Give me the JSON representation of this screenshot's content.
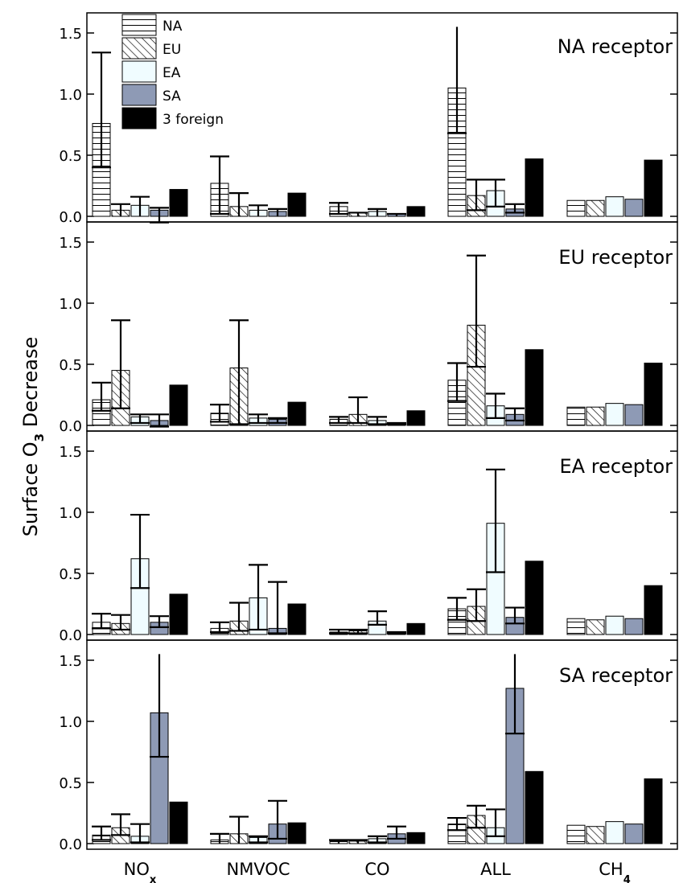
{
  "chart_data": {
    "type": "bar",
    "y_axis_label": {
      "main": "Surface O",
      "sub": "3",
      "tail": " Decrease"
    },
    "categories": [
      {
        "name": "NO",
        "sub": "x"
      },
      {
        "name": "NMVOC",
        "sub": ""
      },
      {
        "name": "CO",
        "sub": ""
      },
      {
        "name": "ALL",
        "sub": ""
      },
      {
        "name": "CH",
        "sub": "4"
      }
    ],
    "series": [
      {
        "name": "NA",
        "pattern": "horizontal-lines"
      },
      {
        "name": "EU",
        "pattern": "diagonal-hatch"
      },
      {
        "name": "EA",
        "color": "#f0fcff"
      },
      {
        "name": "SA",
        "color": "#8e9ab5"
      },
      {
        "name": "3 foreign",
        "color": "#000000"
      }
    ],
    "ylim": [
      0,
      1.55
    ],
    "yticks": [
      0.0,
      0.5,
      1.0,
      1.5
    ],
    "ytick_labels": [
      "0.0",
      "0.5",
      "1.0",
      "1.5"
    ],
    "legend_location": "top-left of first panel",
    "panels": [
      {
        "receptor_label": "NA receptor",
        "values": [
          [
            0.76,
            0.05,
            0.09,
            0.05,
            0.22
          ],
          [
            0.27,
            0.08,
            0.05,
            0.04,
            0.19
          ],
          [
            0.08,
            0.03,
            0.04,
            0.02,
            0.08
          ],
          [
            1.05,
            0.17,
            0.21,
            0.06,
            0.47
          ],
          [
            0.13,
            0.13,
            0.16,
            0.14,
            0.46
          ]
        ],
        "error_low": [
          [
            0.4,
            0.0,
            0.0,
            -0.05,
            null
          ],
          [
            0.02,
            0.0,
            0.0,
            0.0,
            null
          ],
          [
            0.02,
            0.0,
            0.0,
            0.0,
            null
          ],
          [
            0.68,
            0.05,
            0.08,
            0.03,
            null
          ],
          [
            null,
            null,
            null,
            null,
            null
          ]
        ],
        "error_high": [
          [
            1.34,
            0.1,
            0.16,
            0.07,
            null
          ],
          [
            0.49,
            0.19,
            0.09,
            0.06,
            null
          ],
          [
            0.11,
            0.03,
            0.06,
            0.02,
            null
          ],
          [
            1.55,
            0.3,
            0.3,
            0.1,
            null
          ],
          [
            null,
            null,
            null,
            null,
            null
          ]
        ]
      },
      {
        "receptor_label": "EU receptor",
        "values": [
          [
            0.21,
            0.45,
            0.07,
            0.04,
            0.33
          ],
          [
            0.1,
            0.47,
            0.06,
            0.05,
            0.19
          ],
          [
            0.05,
            0.09,
            0.04,
            0.02,
            0.12
          ],
          [
            0.37,
            0.82,
            0.16,
            0.09,
            0.62
          ],
          [
            0.15,
            0.15,
            0.18,
            0.17,
            0.51
          ]
        ],
        "error_low": [
          [
            0.12,
            0.14,
            0.02,
            -0.01,
            null
          ],
          [
            0.03,
            0.01,
            0.02,
            0.02,
            null
          ],
          [
            0.02,
            0.02,
            0.01,
            0.01,
            null
          ],
          [
            0.2,
            0.48,
            0.06,
            0.04,
            null
          ],
          [
            null,
            null,
            null,
            null,
            null
          ]
        ],
        "error_high": [
          [
            0.35,
            0.86,
            0.09,
            0.09,
            null
          ],
          [
            0.17,
            0.86,
            0.09,
            0.06,
            null
          ],
          [
            0.07,
            0.23,
            0.07,
            0.02,
            null
          ],
          [
            0.51,
            1.39,
            0.26,
            0.14,
            null
          ],
          [
            null,
            null,
            null,
            null,
            null
          ]
        ]
      },
      {
        "receptor_label": "EA receptor",
        "values": [
          [
            0.1,
            0.09,
            0.62,
            0.1,
            0.33
          ],
          [
            0.05,
            0.11,
            0.3,
            0.05,
            0.25
          ],
          [
            0.02,
            0.03,
            0.11,
            0.02,
            0.09
          ],
          [
            0.21,
            0.23,
            0.91,
            0.14,
            0.6
          ],
          [
            0.13,
            0.12,
            0.15,
            0.13,
            0.4
          ]
        ],
        "error_low": [
          [
            0.05,
            0.04,
            0.38,
            0.06,
            null
          ],
          [
            0.02,
            0.03,
            0.04,
            0.01,
            null
          ],
          [
            0.01,
            0.01,
            0.08,
            0.01,
            null
          ],
          [
            0.12,
            0.11,
            0.51,
            0.09,
            null
          ],
          [
            null,
            null,
            null,
            null,
            null
          ]
        ],
        "error_high": [
          [
            0.17,
            0.16,
            0.98,
            0.15,
            null
          ],
          [
            0.1,
            0.26,
            0.57,
            0.43,
            null
          ],
          [
            0.04,
            0.04,
            0.19,
            0.02,
            null
          ],
          [
            0.3,
            0.37,
            1.35,
            0.22,
            null
          ],
          [
            null,
            null,
            null,
            null,
            null
          ]
        ]
      },
      {
        "receptor_label": "SA receptor",
        "values": [
          [
            0.07,
            0.13,
            0.06,
            1.07,
            0.34
          ],
          [
            0.03,
            0.08,
            0.05,
            0.16,
            0.17
          ],
          [
            0.02,
            0.02,
            0.04,
            0.08,
            0.09
          ],
          [
            0.16,
            0.23,
            0.13,
            1.27,
            0.59
          ],
          [
            0.15,
            0.14,
            0.18,
            0.16,
            0.53
          ]
        ],
        "error_low": [
          [
            0.03,
            0.07,
            0.01,
            0.71,
            null
          ],
          [
            0.0,
            0.0,
            0.01,
            0.04,
            null
          ],
          [
            0.0,
            0.0,
            0.01,
            0.04,
            null
          ],
          [
            0.11,
            0.13,
            0.06,
            0.9,
            null
          ],
          [
            null,
            null,
            null,
            null,
            null
          ]
        ],
        "error_high": [
          [
            0.14,
            0.24,
            0.16,
            1.55,
            null
          ],
          [
            0.08,
            0.22,
            0.06,
            0.35,
            null
          ],
          [
            0.03,
            0.03,
            0.06,
            0.14,
            null
          ],
          [
            0.21,
            0.31,
            0.28,
            1.55,
            null
          ],
          [
            null,
            null,
            null,
            null,
            null
          ]
        ]
      }
    ]
  }
}
